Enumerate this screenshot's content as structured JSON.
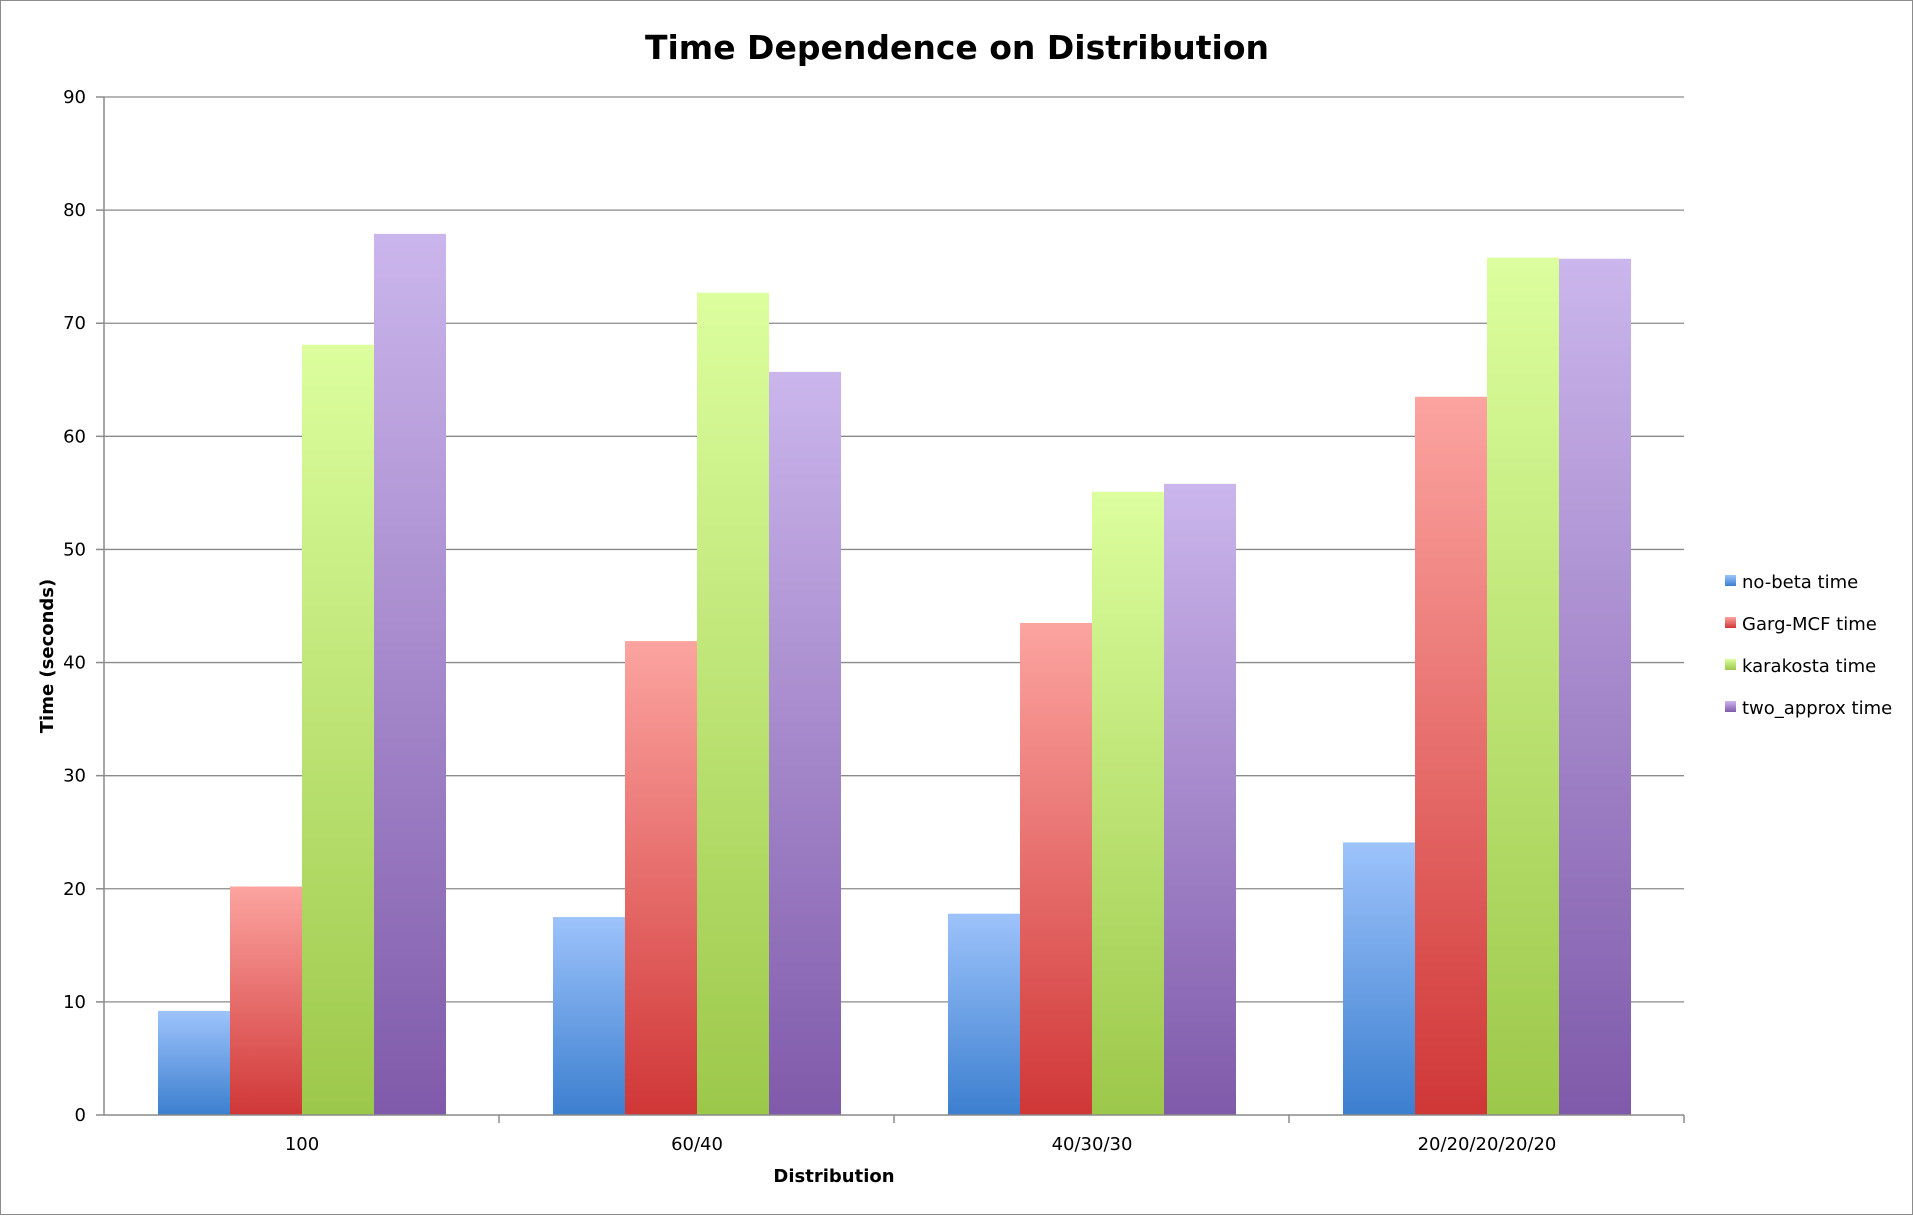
{
  "chart_data": {
    "type": "bar",
    "title": "Time Dependence on Distribution",
    "xlabel": "Distribution",
    "ylabel": "Time (seconds)",
    "categories": [
      "100",
      "60/40",
      "40/30/30",
      "20/20/20/20/20"
    ],
    "series": [
      {
        "name": "no-beta time",
        "values": [
          9.2,
          17.5,
          17.8,
          24.1
        ]
      },
      {
        "name": "Garg-MCF time",
        "values": [
          20.2,
          41.9,
          43.5,
          63.5
        ]
      },
      {
        "name": "karakosta time",
        "values": [
          68.1,
          72.7,
          55.1,
          75.8
        ]
      },
      {
        "name": "two_approx time",
        "values": [
          77.9,
          65.7,
          55.8,
          75.7
        ]
      }
    ],
    "ylim": [
      0,
      90
    ],
    "yticks": [
      0,
      10,
      20,
      30,
      40,
      50,
      60,
      70,
      80,
      90
    ],
    "grid": true,
    "legend": "right",
    "colors": {
      "no-beta time": {
        "light": "#9dc3fb",
        "dark": "#3c7fcf"
      },
      "Garg-MCF time": {
        "light": "#fca4a0",
        "dark": "#d03737"
      },
      "karakosta time": {
        "light": "#dcfe9e",
        "dark": "#9cc84a"
      },
      "two_approx time": {
        "light": "#cbb6ec",
        "dark": "#7f5aaa"
      }
    }
  }
}
